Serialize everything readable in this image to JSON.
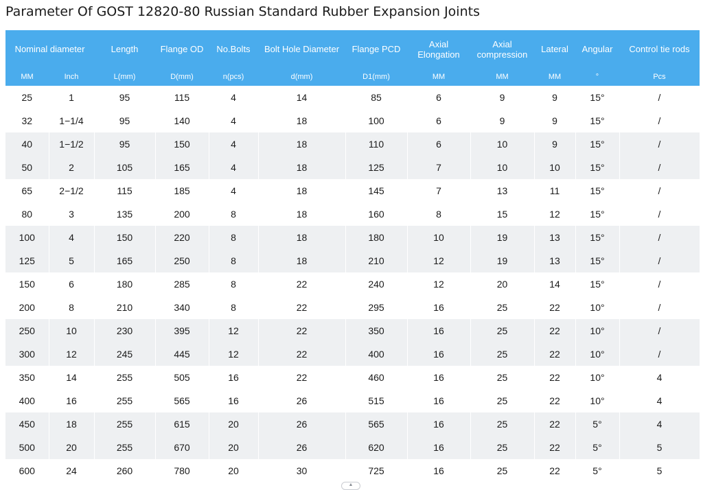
{
  "title": "Parameter Of GOST 12820-80 Russian Standard Rubber Expansion Joints",
  "header": {
    "nominal": "Nominal diameter",
    "length": "Length",
    "flange_od": "Flange OD",
    "bolts": "No.Bolts",
    "bolt_hole": "Bolt Hole Diameter",
    "flange_pcd": "Flange PCD",
    "axial_elongation": "Axial Elongation",
    "axial_compression": "Axial compression",
    "lateral": "Lateral",
    "angular": "Angular",
    "tie_rods": "Control tie rods"
  },
  "units": [
    "MM",
    "Inch",
    "L(mm)",
    "D(mm)",
    "n(pcs)",
    "d(mm)",
    "D1(mm)",
    "MM",
    "MM",
    "MM",
    "°",
    "Pcs"
  ],
  "rows": [
    [
      "25",
      "1",
      "95",
      "115",
      "4",
      "14",
      "85",
      "6",
      "9",
      "9",
      "15°",
      "/"
    ],
    [
      "32",
      "1−1/4",
      "95",
      "140",
      "4",
      "18",
      "100",
      "6",
      "9",
      "9",
      "15°",
      "/"
    ],
    [
      "40",
      "1−1/2",
      "95",
      "150",
      "4",
      "18",
      "110",
      "6",
      "10",
      "9",
      "15°",
      "/"
    ],
    [
      "50",
      "2",
      "105",
      "165",
      "4",
      "18",
      "125",
      "7",
      "10",
      "10",
      "15°",
      "/"
    ],
    [
      "65",
      "2−1/2",
      "115",
      "185",
      "4",
      "18",
      "145",
      "7",
      "13",
      "11",
      "15°",
      "/"
    ],
    [
      "80",
      "3",
      "135",
      "200",
      "8",
      "18",
      "160",
      "8",
      "15",
      "12",
      "15°",
      "/"
    ],
    [
      "100",
      "4",
      "150",
      "220",
      "8",
      "18",
      "180",
      "10",
      "19",
      "13",
      "15°",
      "/"
    ],
    [
      "125",
      "5",
      "165",
      "250",
      "8",
      "18",
      "210",
      "12",
      "19",
      "13",
      "15°",
      "/"
    ],
    [
      "150",
      "6",
      "180",
      "285",
      "8",
      "22",
      "240",
      "12",
      "20",
      "14",
      "15°",
      "/"
    ],
    [
      "200",
      "8",
      "210",
      "340",
      "8",
      "22",
      "295",
      "16",
      "25",
      "22",
      "10°",
      "/"
    ],
    [
      "250",
      "10",
      "230",
      "395",
      "12",
      "22",
      "350",
      "16",
      "25",
      "22",
      "10°",
      "/"
    ],
    [
      "300",
      "12",
      "245",
      "445",
      "12",
      "22",
      "400",
      "16",
      "25",
      "22",
      "10°",
      "/"
    ],
    [
      "350",
      "14",
      "255",
      "505",
      "16",
      "22",
      "460",
      "16",
      "25",
      "22",
      "10°",
      "4"
    ],
    [
      "400",
      "16",
      "255",
      "565",
      "16",
      "26",
      "515",
      "16",
      "25",
      "22",
      "10°",
      "4"
    ],
    [
      "450",
      "18",
      "255",
      "615",
      "20",
      "26",
      "565",
      "16",
      "25",
      "22",
      "5°",
      "4"
    ],
    [
      "500",
      "20",
      "255",
      "670",
      "20",
      "26",
      "620",
      "16",
      "25",
      "22",
      "5°",
      "5"
    ],
    [
      "600",
      "24",
      "260",
      "780",
      "20",
      "30",
      "725",
      "16",
      "25",
      "22",
      "5°",
      "5"
    ]
  ],
  "scroll_icon": "chevron-up-icon",
  "colors": {
    "header_bg": "#4aaced",
    "header_text": "#ffffff",
    "stripe_bg": "#eef0f2",
    "text": "#1a1a1a"
  }
}
